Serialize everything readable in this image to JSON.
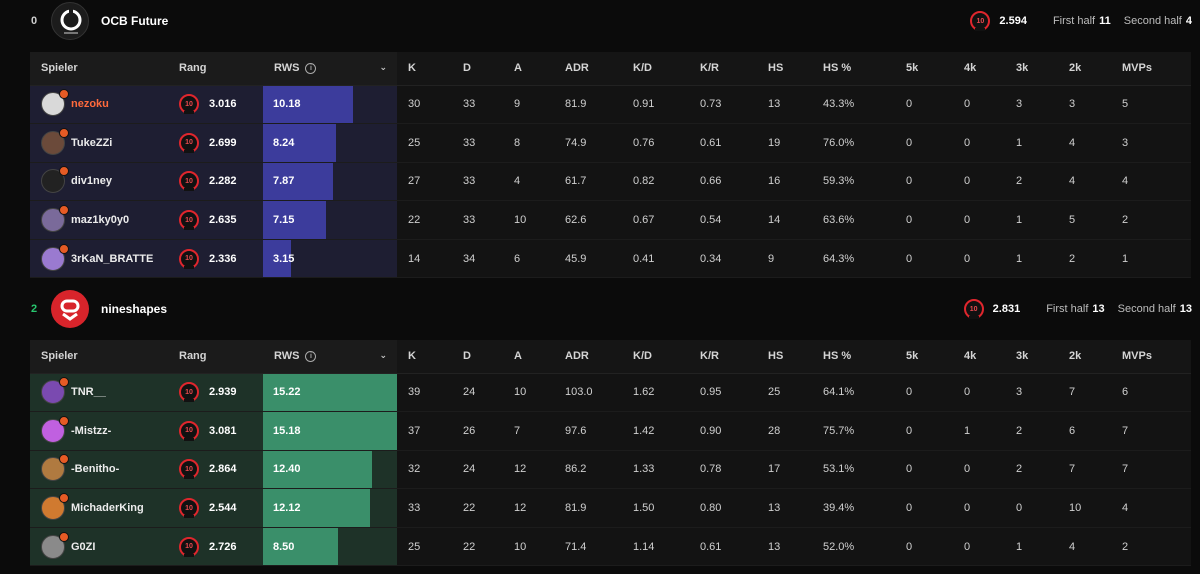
{
  "columns": {
    "spieler": "Spieler",
    "rang": "Rang",
    "rws": "RWS",
    "k": "K",
    "d": "D",
    "a": "A",
    "adr": "ADR",
    "kd": "K/D",
    "kr": "K/R",
    "hs": "HS",
    "hsp": "HS %",
    "k5": "5k",
    "k4": "4k",
    "k3": "3k",
    "k2": "2k",
    "mvps": "MVPs"
  },
  "teams": [
    {
      "score": "0",
      "name": "OCB Future",
      "level": "10",
      "elo": "2.594",
      "first_half_label": "First half",
      "first_half": "11",
      "second_half_label": "Second half",
      "second_half": "4",
      "players": [
        {
          "name": "nezoku",
          "level": "10",
          "elo": "3.016",
          "rws": "10.18",
          "rws_fill": 0.674,
          "k": "30",
          "d": "33",
          "a": "9",
          "adr": "81.9",
          "kd": "0.91",
          "kr": "0.73",
          "hs": "13",
          "hsp": "43.3%",
          "k5": "0",
          "k4": "0",
          "k3": "3",
          "k2": "3",
          "mvps": "5"
        },
        {
          "name": "TukeZZi",
          "level": "10",
          "elo": "2.699",
          "rws": "8.24",
          "rws_fill": 0.545,
          "k": "25",
          "d": "33",
          "a": "8",
          "adr": "74.9",
          "kd": "0.76",
          "kr": "0.61",
          "hs": "19",
          "hsp": "76.0%",
          "k5": "0",
          "k4": "0",
          "k3": "1",
          "k2": "4",
          "mvps": "3"
        },
        {
          "name": "div1ney",
          "level": "10",
          "elo": "2.282",
          "rws": "7.87",
          "rws_fill": 0.521,
          "k": "27",
          "d": "33",
          "a": "4",
          "adr": "61.7",
          "kd": "0.82",
          "kr": "0.66",
          "hs": "16",
          "hsp": "59.3%",
          "k5": "0",
          "k4": "0",
          "k3": "2",
          "k2": "4",
          "mvps": "4"
        },
        {
          "name": "maz1ky0y0",
          "level": "10",
          "elo": "2.635",
          "rws": "7.15",
          "rws_fill": 0.473,
          "k": "22",
          "d": "33",
          "a": "10",
          "adr": "62.6",
          "kd": "0.67",
          "kr": "0.54",
          "hs": "14",
          "hsp": "63.6%",
          "k5": "0",
          "k4": "0",
          "k3": "1",
          "k2": "5",
          "mvps": "2"
        },
        {
          "name": "3rKaN_BRATTE",
          "level": "10",
          "elo": "2.336",
          "rws": "3.15",
          "rws_fill": 0.208,
          "k": "14",
          "d": "34",
          "a": "6",
          "adr": "45.9",
          "kd": "0.41",
          "kr": "0.34",
          "hs": "9",
          "hsp": "64.3%",
          "k5": "0",
          "k4": "0",
          "k3": "1",
          "k2": "2",
          "mvps": "1"
        }
      ]
    },
    {
      "score": "2",
      "name": "nineshapes",
      "level": "10",
      "elo": "2.831",
      "first_half_label": "First half",
      "first_half": "13",
      "second_half_label": "Second half",
      "second_half": "13",
      "players": [
        {
          "name": "TNR__",
          "level": "10",
          "elo": "2.939",
          "rws": "15.22",
          "rws_fill": 1.0,
          "k": "39",
          "d": "24",
          "a": "10",
          "adr": "103.0",
          "kd": "1.62",
          "kr": "0.95",
          "hs": "25",
          "hsp": "64.1%",
          "k5": "0",
          "k4": "0",
          "k3": "3",
          "k2": "7",
          "mvps": "6"
        },
        {
          "name": "-Mistzz-",
          "level": "10",
          "elo": "3.081",
          "rws": "15.18",
          "rws_fill": 0.997,
          "k": "37",
          "d": "26",
          "a": "7",
          "adr": "97.6",
          "kd": "1.42",
          "kr": "0.90",
          "hs": "28",
          "hsp": "75.7%",
          "k5": "0",
          "k4": "1",
          "k3": "2",
          "k2": "6",
          "mvps": "7"
        },
        {
          "name": "-Benitho-",
          "level": "10",
          "elo": "2.864",
          "rws": "12.40",
          "rws_fill": 0.815,
          "k": "32",
          "d": "24",
          "a": "12",
          "adr": "86.2",
          "kd": "1.33",
          "kr": "0.78",
          "hs": "17",
          "hsp": "53.1%",
          "k5": "0",
          "k4": "0",
          "k3": "2",
          "k2": "7",
          "mvps": "7"
        },
        {
          "name": "MichaderKing",
          "level": "10",
          "elo": "2.544",
          "rws": "12.12",
          "rws_fill": 0.796,
          "k": "33",
          "d": "22",
          "a": "12",
          "adr": "81.9",
          "kd": "1.50",
          "kr": "0.80",
          "hs": "13",
          "hsp": "39.4%",
          "k5": "0",
          "k4": "0",
          "k3": "0",
          "k2": "10",
          "mvps": "4"
        },
        {
          "name": "G0ZI",
          "level": "10",
          "elo": "2.726",
          "rws": "8.50",
          "rws_fill": 0.558,
          "k": "25",
          "d": "22",
          "a": "10",
          "adr": "71.4",
          "kd": "1.14",
          "kr": "0.61",
          "hs": "13",
          "hsp": "52.0%",
          "k5": "0",
          "k4": "0",
          "k3": "1",
          "k2": "4",
          "mvps": "2"
        }
      ]
    }
  ],
  "colors": {
    "accent_orange": "#ff6a3c",
    "level_red": "#e0262d",
    "team_a_bar": "#3c3c9c",
    "team_b_bar": "#3a8f6a",
    "winner_green": "#28c76f"
  },
  "icons": [
    "faceit-level-10-icon",
    "info-icon",
    "chevron-down-icon",
    "team-logo",
    "player-avatar"
  ]
}
